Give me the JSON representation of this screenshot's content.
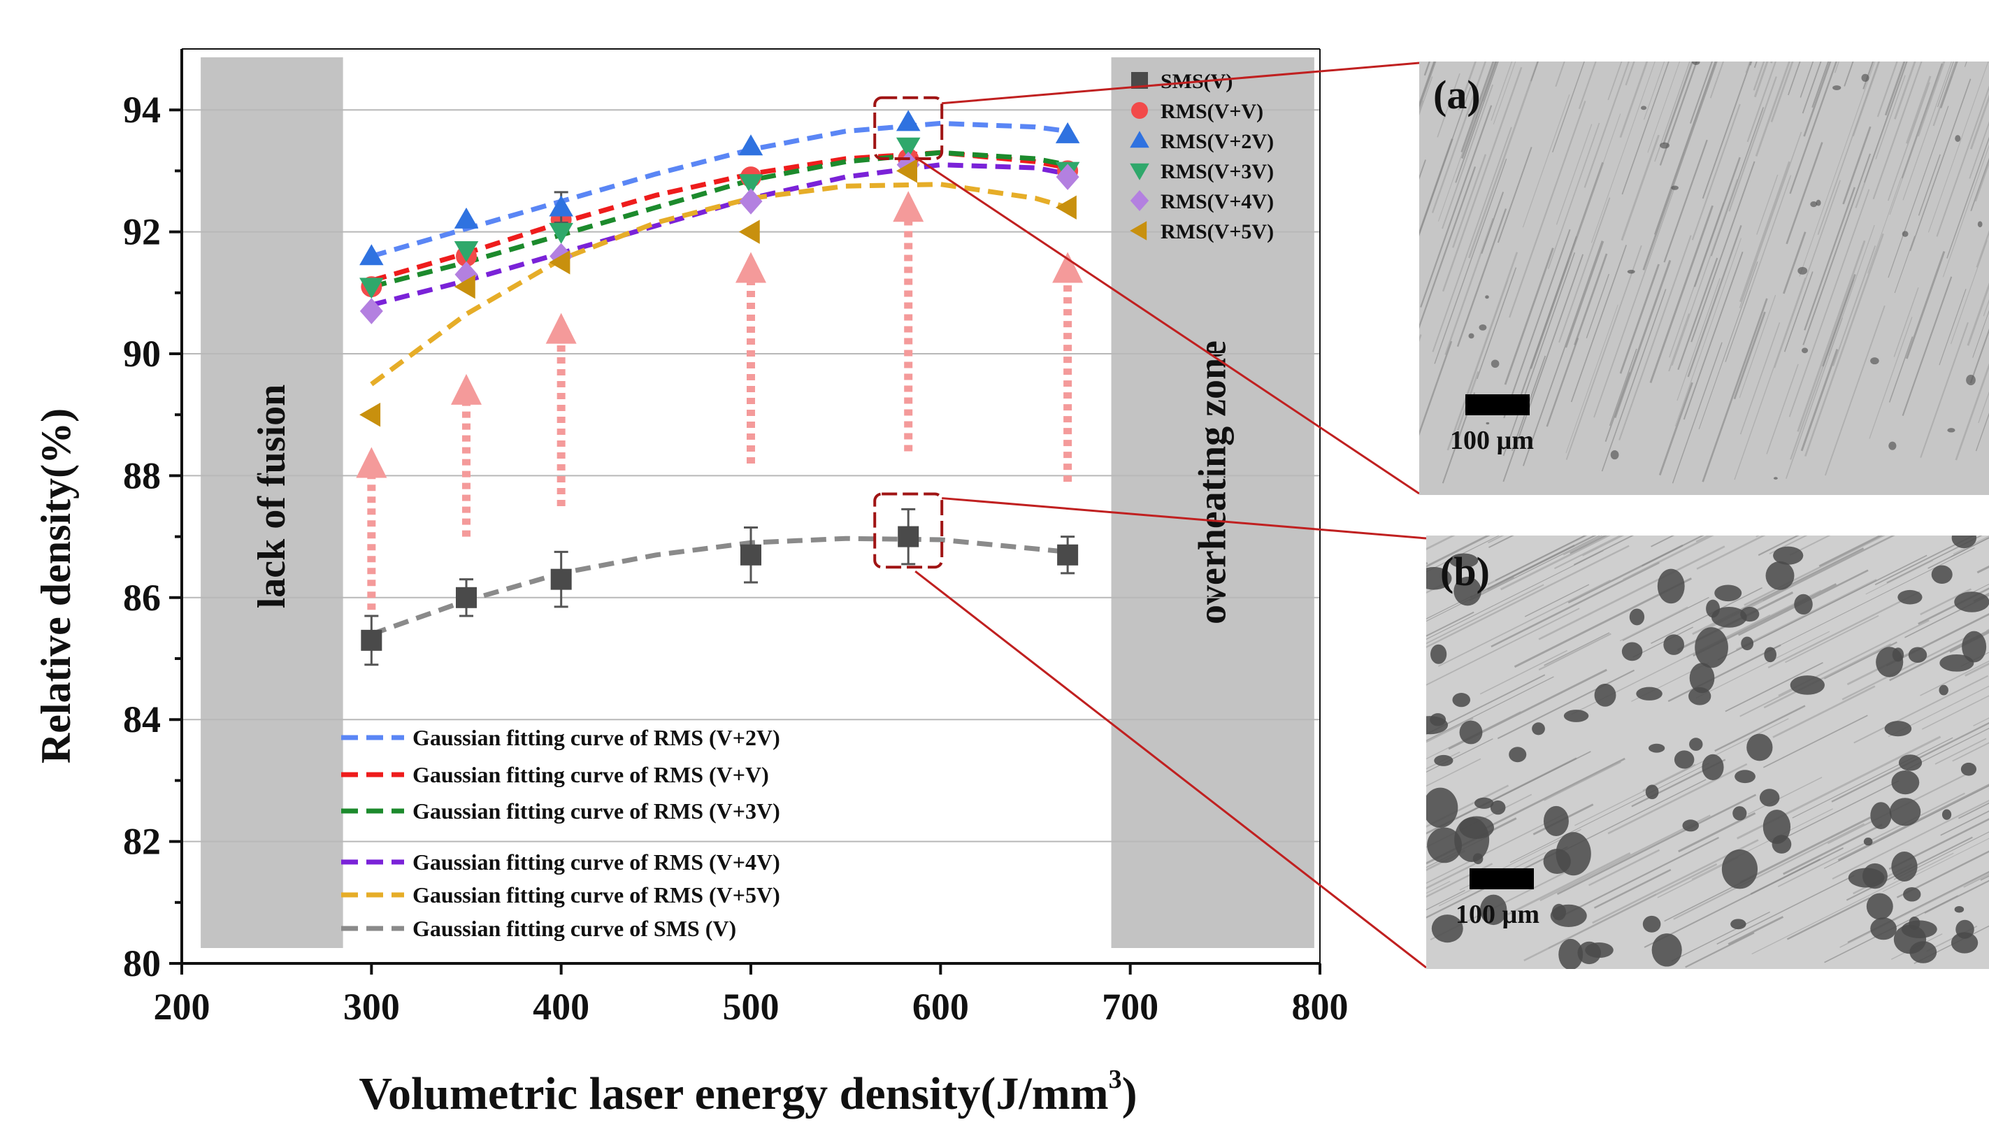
{
  "chart_data": {
    "type": "scatter",
    "xlabel": "Volumetric laser energy density(J/mm",
    "xlabel_sup": "3",
    "xlabel_close": ")",
    "ylabel": "Relative density(%)",
    "xlim": [
      200,
      800
    ],
    "ylim": [
      80,
      95
    ],
    "xticks": [
      200,
      300,
      400,
      500,
      600,
      700,
      800
    ],
    "yticks": [
      80,
      82,
      84,
      86,
      88,
      90,
      92,
      94
    ],
    "grid": "horizontal",
    "zones": [
      {
        "label": "lack of fusion",
        "x_range": [
          210,
          285
        ]
      },
      {
        "label": "overheating zone",
        "x_range": [
          690,
          797
        ]
      }
    ],
    "x": [
      300,
      350,
      400,
      500,
      583,
      667
    ],
    "series": [
      {
        "name": "SMS(V)",
        "marker": "square",
        "color": "#4a4a4a",
        "values": [
          85.3,
          86.0,
          86.3,
          86.7,
          87.0,
          86.7
        ],
        "errors": [
          0.4,
          0.3,
          0.45,
          0.45,
          0.45,
          0.3
        ]
      },
      {
        "name": "RMS(V+V)",
        "marker": "circle",
        "color": "#f24a4a",
        "values": [
          91.1,
          91.6,
          92.2,
          92.9,
          93.2,
          93.0
        ],
        "errors": [
          0.1,
          0.1,
          0.1,
          0.1,
          0.1,
          0.1
        ]
      },
      {
        "name": "RMS(V+2V)",
        "marker": "triangle-up",
        "color": "#2f72e0",
        "values": [
          91.6,
          92.2,
          92.4,
          93.4,
          93.8,
          93.6
        ],
        "errors": [
          0.1,
          0.1,
          0.25,
          0.1,
          0.1,
          0.1
        ]
      },
      {
        "name": "RMS(V+3V)",
        "marker": "triangle-down",
        "color": "#2fa86b",
        "values": [
          91.1,
          91.7,
          92.0,
          92.8,
          93.4,
          93.0
        ],
        "errors": [
          0.1,
          0.1,
          0.1,
          0.1,
          0.1,
          0.1
        ]
      },
      {
        "name": "RMS(V+4V)",
        "marker": "diamond",
        "color": "#b380e0",
        "values": [
          90.7,
          91.3,
          91.6,
          92.5,
          93.1,
          92.9
        ],
        "errors": [
          0.1,
          0.1,
          0.1,
          0.1,
          0.1,
          0.1
        ]
      },
      {
        "name": "RMS(V+5V)",
        "marker": "triangle-left",
        "color": "#c8900e",
        "values": [
          89.0,
          91.1,
          91.5,
          92.0,
          93.0,
          92.4
        ],
        "errors": [
          0.1,
          0.1,
          0.1,
          0.1,
          0.1,
          0.1
        ]
      }
    ],
    "fits": [
      {
        "name": "Gaussian fitting curve of RMS (V+2V)",
        "color": "#5a86f5",
        "x": [
          300,
          350,
          400,
          450,
          500,
          550,
          600,
          650,
          667
        ],
        "y": [
          91.6,
          92.05,
          92.5,
          92.95,
          93.35,
          93.65,
          93.78,
          93.72,
          93.65
        ]
      },
      {
        "name": "Gaussian fitting curve of RMS (V+V)",
        "color": "#ee1c1c",
        "x": [
          300,
          350,
          400,
          450,
          500,
          550,
          600,
          650,
          667
        ],
        "y": [
          91.2,
          91.65,
          92.15,
          92.6,
          92.95,
          93.2,
          93.3,
          93.15,
          93.05
        ]
      },
      {
        "name": "Gaussian fitting curve of RMS (V+3V)",
        "color": "#1c8a2c",
        "x": [
          300,
          350,
          400,
          450,
          500,
          550,
          600,
          650,
          667
        ],
        "y": [
          91.1,
          91.5,
          91.95,
          92.4,
          92.85,
          93.15,
          93.3,
          93.2,
          93.1
        ]
      },
      {
        "name": "Gaussian fitting curve of RMS (V+4V)",
        "color": "#7a22d8",
        "x": [
          300,
          350,
          400,
          450,
          500,
          550,
          600,
          650,
          667
        ],
        "y": [
          90.8,
          91.2,
          91.65,
          92.1,
          92.55,
          92.9,
          93.1,
          93.05,
          92.95
        ]
      },
      {
        "name": "Gaussian fitting curve of RMS (V+5V)",
        "color": "#e6ad28",
        "x": [
          300,
          350,
          400,
          450,
          500,
          550,
          600,
          650,
          667
        ],
        "y": [
          89.5,
          90.65,
          91.55,
          92.15,
          92.55,
          92.75,
          92.78,
          92.55,
          92.4
        ]
      },
      {
        "name": "Gaussian fitting curve of SMS (V)",
        "color": "#8a8a8a",
        "x": [
          300,
          350,
          400,
          450,
          500,
          550,
          600,
          650,
          667
        ],
        "y": [
          85.4,
          85.95,
          86.4,
          86.7,
          86.9,
          86.97,
          86.95,
          86.8,
          86.75
        ]
      }
    ],
    "arrows": [
      {
        "x": 300,
        "from": 85.8,
        "to": 88.4
      },
      {
        "x": 350,
        "from": 87.0,
        "to": 89.6
      },
      {
        "x": 400,
        "from": 87.5,
        "to": 90.6
      },
      {
        "x": 500,
        "from": 88.2,
        "to": 91.6
      },
      {
        "x": 583,
        "from": 88.4,
        "to": 92.6
      },
      {
        "x": 667,
        "from": 87.9,
        "to": 91.6
      }
    ],
    "highlight_x": 583,
    "highlight_boxes": [
      {
        "target": "a",
        "y_range": [
          93.2,
          94.2
        ]
      },
      {
        "target": "b",
        "y_range": [
          86.5,
          87.7
        ]
      }
    ]
  },
  "panels": [
    {
      "label": "(a)",
      "scale": "100 µm"
    },
    {
      "label": "(b)",
      "scale": "100 µm"
    }
  ]
}
